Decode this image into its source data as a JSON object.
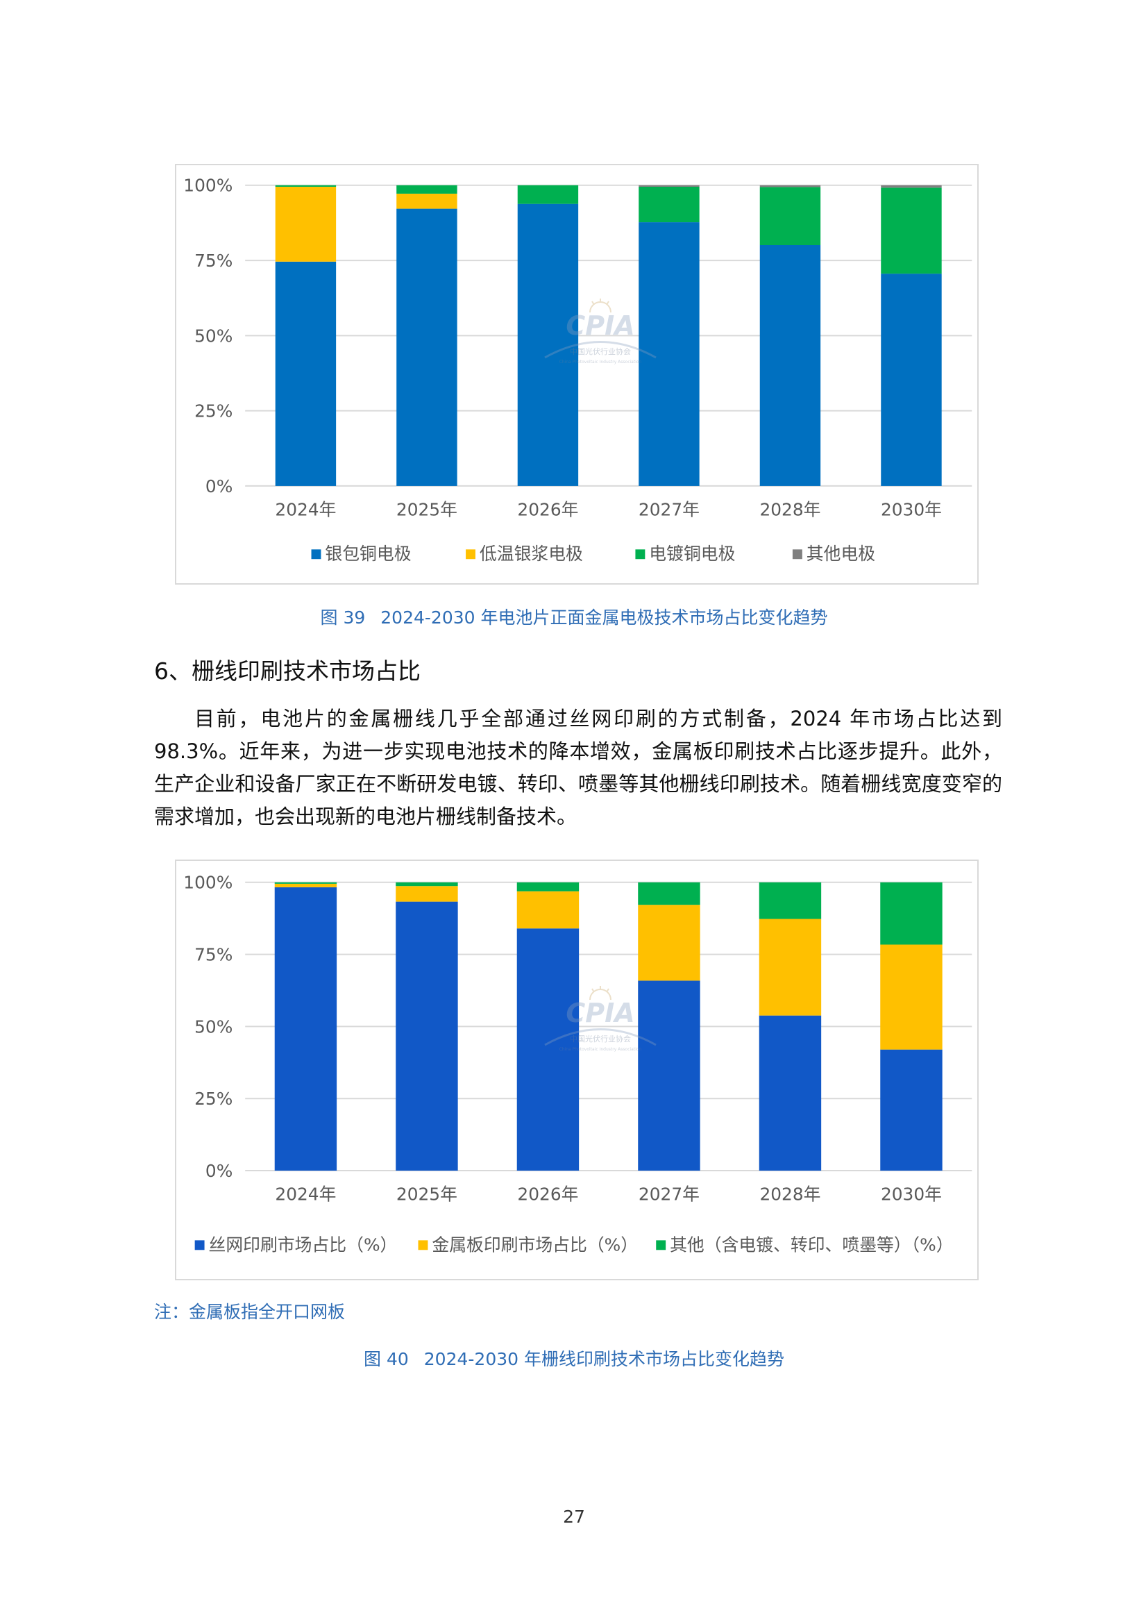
{
  "chart_data": [
    {
      "type": "bar",
      "stacked": true,
      "categories": [
        "2024年",
        "2025年",
        "2026年",
        "2027年",
        "2028年",
        "2030年"
      ],
      "series": [
        {
          "name": "银包铜电极",
          "color": "#0070c0",
          "values": [
            74.6,
            92.2,
            93.8,
            87.7,
            80.1,
            70.6
          ]
        },
        {
          "name": "低温银浆电极",
          "color": "#ffc000",
          "values": [
            24.9,
            5.0,
            0.0,
            0.0,
            0.0,
            0.0
          ]
        },
        {
          "name": "电镀铜电极",
          "color": "#00b050",
          "values": [
            0.5,
            2.8,
            6.2,
            11.8,
            19.3,
            28.6
          ]
        },
        {
          "name": "其他电极",
          "color": "#7f7f7f",
          "values": [
            0.0,
            0.0,
            0.0,
            0.5,
            0.6,
            0.8
          ]
        }
      ],
      "ylim": [
        0,
        100
      ],
      "y_ticks": [
        "0%",
        "25%",
        "50%",
        "75%",
        "100%"
      ],
      "grid": true,
      "legend": "bottom"
    },
    {
      "type": "bar",
      "stacked": true,
      "categories": [
        "2024年",
        "2025年",
        "2026年",
        "2027年",
        "2028年",
        "2030年"
      ],
      "series": [
        {
          "name": "丝网印刷市场占比（%）",
          "color": "#1158c7",
          "values": [
            98.3,
            93.3,
            84.0,
            65.9,
            53.8,
            42.0
          ]
        },
        {
          "name": "金属板印刷市场占比（%）",
          "color": "#ffc000",
          "values": [
            1.2,
            5.4,
            12.9,
            26.3,
            33.5,
            36.4
          ]
        },
        {
          "name": "其他（含电镀、转印、喷墨等）（%）",
          "color": "#00b050",
          "values": [
            0.5,
            1.3,
            3.1,
            7.8,
            12.7,
            21.6
          ]
        }
      ],
      "ylim": [
        0,
        100
      ],
      "y_ticks": [
        "0%",
        "25%",
        "50%",
        "75%",
        "100%"
      ],
      "grid": true,
      "legend": "bottom"
    }
  ],
  "figure39": {
    "label": "图 39",
    "title": "2024-2030 年电池片正面金属电极技术市场占比变化趋势"
  },
  "section": {
    "heading": "6、栅线印刷技术市场占比"
  },
  "paragraph": "目前，电池片的金属栅线几乎全部通过丝网印刷的方式制备，2024 年市场占比达到 98.3%。近年来，为进一步实现电池技术的降本增效，金属板印刷技术占比逐步提升。此外，生产企业和设备厂家正在不断研发电镀、转印、喷墨等其他栅线印刷技术。随着栅线宽度变窄的需求增加，也会出现新的电池片栅线制备技术。",
  "note": "注：金属板指全开口网板",
  "figure40": {
    "label": "图 40",
    "title": "2024-2030 年栅线印刷技术市场占比变化趋势"
  },
  "watermark": {
    "logo_text": "CPIA",
    "org_name": "中国光伏行业协会",
    "org_name_en": "China Photovoltaic Industry Association"
  },
  "page_number": "27"
}
